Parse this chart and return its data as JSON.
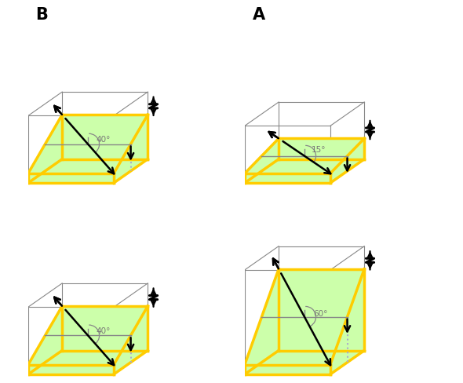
{
  "bg_color": "#ffffff",
  "green_fill": "#ccffaa",
  "yellow_edge": "#ffcc00",
  "black": "#000000",
  "gray_edge": "#888888",
  "dot_color": "#aaaacc",
  "panels": [
    {
      "label": "B",
      "dip": 40,
      "row": 0,
      "col": 0
    },
    {
      "label": "A",
      "dip": 15,
      "row": 0,
      "col": 1
    },
    {
      "label": "",
      "dip": 40,
      "row": 1,
      "col": 0
    },
    {
      "label": "",
      "dip": 60,
      "row": 1,
      "col": 1
    }
  ],
  "proj_az": 35,
  "proj_sc": 0.52
}
